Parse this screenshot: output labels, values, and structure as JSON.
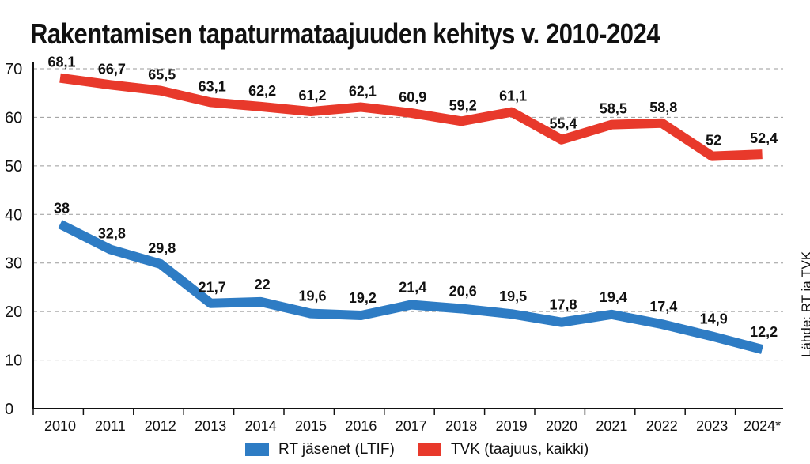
{
  "title": "Rakentamisen tapaturmataajuuden kehitys v. 2010-2024",
  "source": "Lähde: RT ja TVK",
  "chart_data": {
    "type": "line",
    "title": "Rakentamisen tapaturmataajuuden kehitys v. 2010-2024",
    "categories": [
      "2010",
      "2011",
      "2012",
      "2013",
      "2014",
      "2015",
      "2016",
      "2017",
      "2018",
      "2019",
      "2020",
      "2021",
      "2022",
      "2023",
      "2024*"
    ],
    "y_ticks": [
      "0",
      "10",
      "20",
      "30",
      "40",
      "50",
      "60",
      "70"
    ],
    "ylim": [
      0,
      70
    ],
    "grid": "horizontal dashed",
    "legend_position": "bottom",
    "series": [
      {
        "name": "RT jäsenet (LTIF)",
        "color": "#2e7cc4",
        "values": [
          38,
          32.8,
          29.8,
          21.7,
          22,
          19.6,
          19.2,
          21.4,
          20.6,
          19.5,
          17.8,
          19.4,
          17.4,
          14.9,
          12.2
        ],
        "labels": [
          "38",
          "32,8",
          "29,8",
          "21,7",
          "22",
          "19,6",
          "19,2",
          "21,4",
          "20,6",
          "19,5",
          "17,8",
          "19,4",
          "17,4",
          "14,9",
          "12,2"
        ]
      },
      {
        "name": "TVK (taajuus, kaikki)",
        "color": "#e8392b",
        "values": [
          68.1,
          66.7,
          65.5,
          63.1,
          62.2,
          61.2,
          62.1,
          60.9,
          59.2,
          61.1,
          55.4,
          58.5,
          58.8,
          52,
          52.4
        ],
        "labels": [
          "68,1",
          "66,7",
          "65,5",
          "63,1",
          "62,2",
          "61,2",
          "62,1",
          "60,9",
          "59,2",
          "61,1",
          "55,4",
          "58,5",
          "58,8",
          "52",
          "52,4"
        ]
      }
    ]
  }
}
